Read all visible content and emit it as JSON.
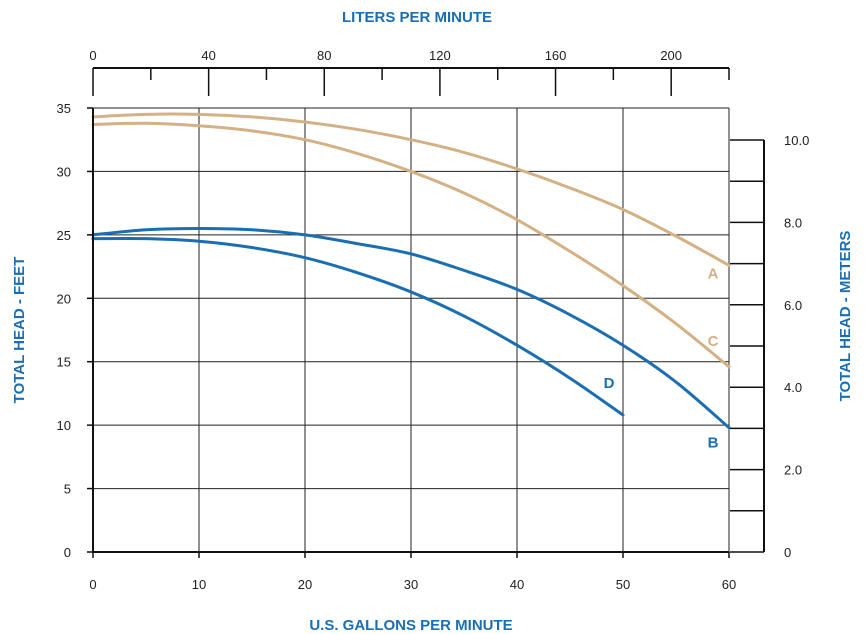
{
  "chart_data": {
    "type": "line",
    "title": "",
    "xlabel": "U.S. GALLONS PER MINUTE",
    "ylabel": "TOTAL HEAD - FEET",
    "x2label": "LITERS PER MINUTE",
    "y2label": "TOTAL HEAD - METERS",
    "xlim": [
      0,
      60
    ],
    "ylim": [
      0,
      35
    ],
    "x2lim": [
      0,
      220
    ],
    "y2lim": [
      0,
      10.0
    ],
    "x_ticks": [
      "0",
      "10",
      "20",
      "30",
      "40",
      "50",
      "60"
    ],
    "y_ticks": [
      "0",
      "5",
      "10",
      "15",
      "20",
      "25",
      "30",
      "35"
    ],
    "x2_ticks": [
      "0",
      "40",
      "80",
      "120",
      "160",
      "200"
    ],
    "y2_ticks": [
      "0",
      "2.0",
      "4.0",
      "6.0",
      "8.0",
      "10.0"
    ],
    "grid": true,
    "colors": {
      "tan": "#d4b184",
      "blue": "#1a6eb1",
      "axis": "#111111"
    },
    "series": [
      {
        "name": "A",
        "color": "#d4b184",
        "x": [
          0,
          5,
          10,
          15,
          20,
          25,
          30,
          35,
          40,
          45,
          50,
          55,
          60
        ],
        "y": [
          34.3,
          34.5,
          34.5,
          34.3,
          33.9,
          33.3,
          32.5,
          31.5,
          30.2,
          28.7,
          27.0,
          24.9,
          22.6
        ]
      },
      {
        "name": "C",
        "color": "#d4b184",
        "x": [
          0,
          5,
          10,
          15,
          20,
          25,
          30,
          35,
          40,
          45,
          50,
          55,
          60
        ],
        "y": [
          33.7,
          33.8,
          33.6,
          33.2,
          32.5,
          31.4,
          30.0,
          28.3,
          26.2,
          23.7,
          21.0,
          18.0,
          14.6
        ]
      },
      {
        "name": "B",
        "color": "#1a6eb1",
        "x": [
          0,
          5,
          10,
          15,
          20,
          25,
          30,
          35,
          40,
          45,
          50,
          55,
          60
        ],
        "y": [
          25.0,
          25.4,
          25.5,
          25.4,
          25.0,
          24.3,
          23.5,
          22.2,
          20.7,
          18.7,
          16.3,
          13.4,
          9.8
        ]
      },
      {
        "name": "D",
        "color": "#1a6eb1",
        "x": [
          0,
          5,
          10,
          15,
          20,
          25,
          30,
          35,
          40,
          45,
          50
        ],
        "y": [
          24.7,
          24.7,
          24.5,
          24.0,
          23.2,
          22.0,
          20.5,
          18.6,
          16.3,
          13.7,
          10.8
        ]
      }
    ]
  }
}
